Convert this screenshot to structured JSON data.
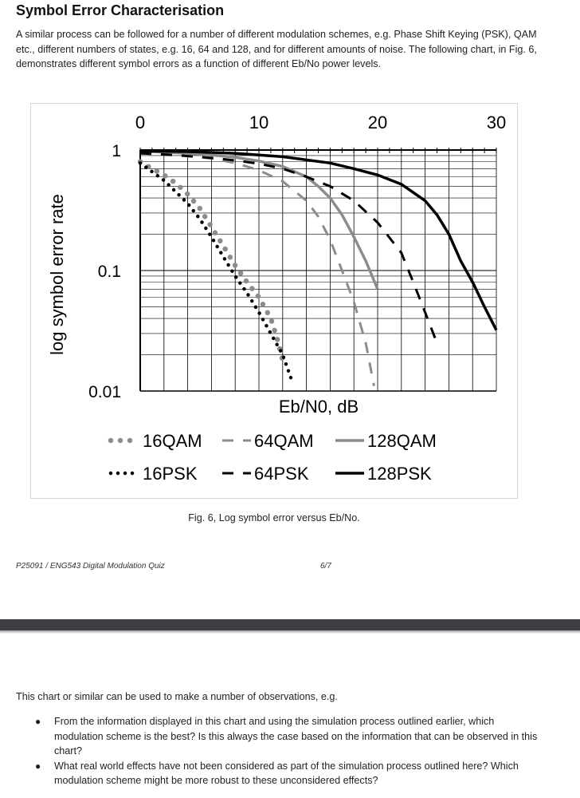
{
  "heading": "Symbol Error Characterisation",
  "intro": "A similar process can be followed for a number of different modulation schemes,  e.g. Phase Shift Keying (PSK), QAM etc., different numbers of states, e.g. 16, 64 and 128, and for different amounts of noise. The following chart, in Fig. 6, demonstrates different symbol errors as a function of different Eb/No power levels.",
  "figure_caption": "Fig. 6, Log symbol error versus Eb/No.",
  "footer": {
    "doc_id": "P25091 / ENG543 Digital Modulation Quiz",
    "page": "6/7"
  },
  "observations_intro": "This chart or similar can be used to make a number of observations, e.g.",
  "bullets": [
    "From the information displayed in this chart and using the simulation process outlined earlier, which modulation scheme is the best? Is this always the case based on the information that can be observed in this chart?",
    "What real world effects have not been considered as part of the simulation process outlined here? Which modulation scheme might be more robust to these unconsidered effects?"
  ],
  "colors": {
    "qam": "#8c8c8c",
    "psk": "#000000",
    "page_break": "#3d3f43"
  },
  "chart_data": {
    "type": "line",
    "title": "",
    "xlabel": "Eb/N0, dB",
    "ylabel": "log symbol error rate",
    "xlim": [
      0,
      30
    ],
    "ylim": [
      0.01,
      1
    ],
    "y_scale": "log",
    "x_ticks": [
      0,
      10,
      20,
      30
    ],
    "x_tick_labels": [
      "0",
      "10",
      "20",
      "30"
    ],
    "y_ticks": [
      1,
      0.1,
      0.01
    ],
    "y_tick_labels": [
      "1",
      "0.1",
      "0.01"
    ],
    "x_axis_position": "top",
    "grid": true,
    "legend_position": "bottom",
    "series": [
      {
        "name": "16QAM",
        "style": "dotted-large",
        "color": "#8c8c8c",
        "x": [
          0,
          1,
          2,
          3,
          4,
          5,
          6,
          7,
          8,
          9,
          10,
          11,
          11.5,
          12
        ],
        "y": [
          0.8,
          0.7,
          0.62,
          0.53,
          0.43,
          0.33,
          0.23,
          0.16,
          0.11,
          0.08,
          0.06,
          0.04,
          0.028,
          0.018
        ]
      },
      {
        "name": "64QAM",
        "style": "dashed",
        "color": "#8c8c8c",
        "x": [
          0,
          2,
          4,
          6,
          8,
          10,
          12,
          14,
          15,
          16,
          17,
          18,
          19,
          19.7
        ],
        "y": [
          0.96,
          0.93,
          0.9,
          0.85,
          0.78,
          0.68,
          0.55,
          0.38,
          0.28,
          0.18,
          0.1,
          0.055,
          0.025,
          0.011
        ]
      },
      {
        "name": "128QAM",
        "style": "solid",
        "color": "#8c8c8c",
        "x": [
          0,
          2,
          4,
          6,
          8,
          10,
          12,
          14,
          15,
          16,
          17,
          18,
          19,
          20
        ],
        "y": [
          0.98,
          0.96,
          0.94,
          0.91,
          0.87,
          0.81,
          0.73,
          0.6,
          0.5,
          0.4,
          0.29,
          0.19,
          0.12,
          0.07
        ]
      },
      {
        "name": "16PSK",
        "style": "dotted",
        "color": "#000000",
        "x": [
          0,
          1,
          2,
          3,
          4,
          5,
          6,
          7,
          8,
          9,
          10,
          11,
          12,
          12.8
        ],
        "y": [
          0.78,
          0.66,
          0.56,
          0.45,
          0.36,
          0.27,
          0.19,
          0.13,
          0.09,
          0.065,
          0.045,
          0.03,
          0.02,
          0.012
        ]
      },
      {
        "name": "64PSK",
        "style": "dashed",
        "color": "#000000",
        "x": [
          0,
          2,
          4,
          6,
          8,
          10,
          12,
          14,
          16,
          18,
          20,
          22,
          23,
          24,
          25
        ],
        "y": [
          0.94,
          0.92,
          0.89,
          0.86,
          0.82,
          0.77,
          0.7,
          0.6,
          0.5,
          0.38,
          0.25,
          0.14,
          0.08,
          0.045,
          0.025
        ]
      },
      {
        "name": "128PSK",
        "style": "solid",
        "color": "#000000",
        "x": [
          0,
          4,
          8,
          12,
          16,
          18,
          20,
          22,
          24,
          25,
          26,
          27,
          28,
          29,
          30
        ],
        "y": [
          0.98,
          0.97,
          0.94,
          0.88,
          0.78,
          0.7,
          0.62,
          0.52,
          0.38,
          0.29,
          0.2,
          0.12,
          0.08,
          0.05,
          0.032
        ]
      }
    ],
    "legend_rows": [
      [
        "16QAM",
        "64QAM",
        "128QAM"
      ],
      [
        "16PSK",
        "64PSK",
        "128PSK"
      ]
    ]
  }
}
